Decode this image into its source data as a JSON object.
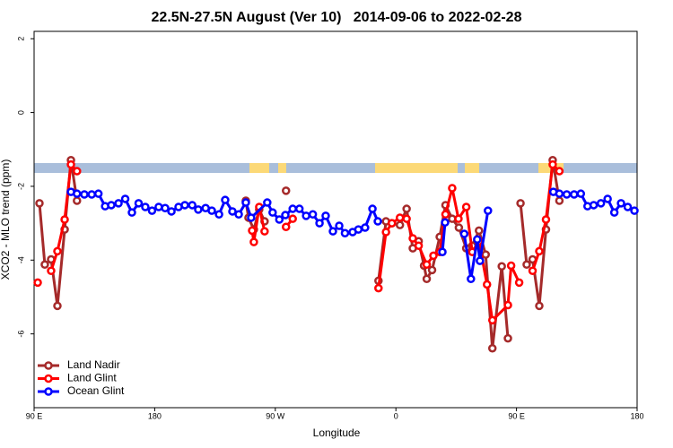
{
  "chart_data": {
    "type": "line",
    "title": "22.5N-27.5N August (Ver 10)   2014-09-06 to 2022-02-28",
    "x_label": "Longitude",
    "y_label": "XCO2 - MLO trend (ppm)",
    "xlim": [
      90,
      540
    ],
    "xticks": [
      {
        "value": 90,
        "label": "90 E"
      },
      180,
      {
        "value": 270,
        "label": "90 W"
      },
      {
        "value": 360,
        "label": "0"
      },
      {
        "value": 450,
        "label": "90 E"
      },
      180
    ],
    "ylim": [
      -8.0,
      2.2
    ],
    "yticks": [
      -6,
      -4,
      -2,
      0,
      2
    ],
    "legend": "bottomleft",
    "series": [
      {
        "name": "Land Nadir",
        "color": "#a52a2a",
        "x": [
          94,
          98,
          102.7,
          107.4,
          112.8,
          117.5,
          122,
          null,
          248,
          250,
          254,
          258,
          262,
          null,
          278,
          null,
          347,
          352.6,
          357,
          363,
          368,
          372.6,
          377,
          381,
          383,
          387,
          392.7,
          397,
          402,
          407,
          412.5,
          417,
          422,
          427,
          432,
          439,
          443.6,
          null,
          453,
          457.6,
          462,
          467,
          472,
          477,
          482
        ],
        "values": [
          -2.46,
          -4.12,
          -3.98,
          -5.24,
          -3.17,
          -1.29,
          -2.39,
          null,
          -2.39,
          -2.85,
          -3.17,
          -2.63,
          -2.95,
          null,
          -2.12,
          null,
          -4.56,
          -2.95,
          -3.0,
          -3.05,
          -2.61,
          -3.68,
          -3.49,
          -4.15,
          -4.51,
          -4.27,
          -3.37,
          -2.51,
          -2.88,
          -3.12,
          -3.68,
          -3.61,
          -3.2,
          -3.85,
          -6.39,
          -4.17,
          -6.12,
          null,
          -2.46,
          -4.12,
          -3.98,
          -5.24,
          -3.17,
          -1.29,
          -2.39
        ]
      },
      {
        "name": "Land Glint",
        "color": "#ff0000",
        "x": [
          92.7,
          null,
          102.7,
          107.4,
          112.8,
          117.5,
          122,
          null,
          252.7,
          254,
          258,
          262,
          null,
          278,
          283,
          null,
          347,
          352.6,
          357,
          363,
          368,
          372.6,
          377,
          383,
          388,
          392.7,
          397,
          402,
          406.7,
          412.5,
          417,
          422,
          428,
          432,
          443.6,
          446,
          452,
          null,
          462,
          467,
          472,
          477,
          482
        ],
        "values": [
          -4.61,
          null,
          -4.29,
          -3.76,
          -2.9,
          -1.41,
          -1.59,
          null,
          -3.2,
          -3.51,
          -2.56,
          -3.22,
          null,
          -3.1,
          -2.88,
          null,
          -4.76,
          -3.24,
          -3.0,
          -2.85,
          -2.88,
          -3.41,
          -3.61,
          -4.12,
          -3.88,
          -3.78,
          -2.76,
          -2.05,
          -2.88,
          -2.56,
          -3.78,
          -3.49,
          -4.66,
          -5.63,
          -5.22,
          -4.15,
          -4.61,
          null,
          -4.29,
          -3.76,
          -2.9,
          -1.41,
          -1.59
        ]
      },
      {
        "name": "Ocean Glint",
        "color": "#0000ff",
        "x": [
          117.5,
          122,
          127.5,
          133,
          138,
          143,
          147.6,
          153,
          158,
          163,
          168,
          173,
          178,
          183,
          187.8,
          192.5,
          197.8,
          202.5,
          208,
          212.5,
          218,
          222.6,
          228,
          232.6,
          238,
          242.7,
          248,
          252,
          264,
          268,
          273,
          277.5,
          283,
          288,
          293,
          298,
          303,
          307.6,
          313,
          317.7,
          322,
          327.7,
          332,
          337,
          342.5,
          346.5,
          null,
          394.7,
          396.7,
          null,
          411,
          416,
          420.7,
          422.7,
          428.7,
          null,
          477.5,
          482,
          487.5,
          493,
          498,
          503,
          507.6,
          513,
          518,
          523,
          528,
          533,
          538
        ],
        "values": [
          -2.15,
          -2.2,
          -2.22,
          -2.22,
          -2.2,
          -2.54,
          -2.51,
          -2.46,
          -2.34,
          -2.71,
          -2.46,
          -2.56,
          -2.66,
          -2.56,
          -2.59,
          -2.68,
          -2.56,
          -2.51,
          -2.51,
          -2.63,
          -2.59,
          -2.66,
          -2.76,
          -2.37,
          -2.68,
          -2.76,
          -2.44,
          -2.85,
          -2.44,
          -2.71,
          -2.9,
          -2.78,
          -2.61,
          -2.61,
          -2.8,
          -2.76,
          -3.0,
          -2.8,
          -3.22,
          -3.07,
          -3.27,
          -3.24,
          -3.17,
          -3.12,
          -2.61,
          -2.95,
          null,
          -3.78,
          -2.98,
          null,
          -3.29,
          -4.51,
          -3.44,
          -4.02,
          -2.66,
          null,
          -2.15,
          -2.2,
          -2.22,
          -2.22,
          -2.2,
          -2.54,
          -2.51,
          -2.46,
          -2.34,
          -2.71,
          -2.46,
          -2.56,
          -2.66
        ]
      }
    ]
  }
}
